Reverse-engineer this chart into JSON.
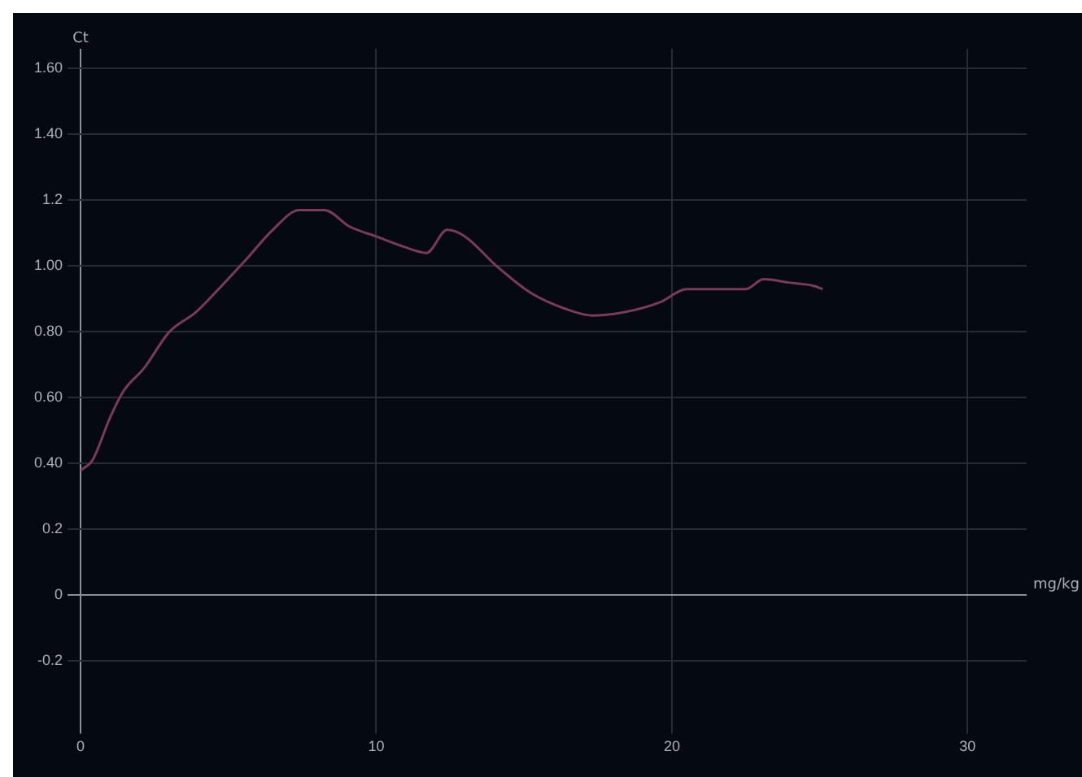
{
  "chart_data": {
    "type": "line",
    "xlabel": "mg/kg",
    "ylabel": "Ct",
    "x": [
      0,
      0.4,
      1.0,
      1.45,
      2.15,
      3.0,
      3.9,
      4.77,
      5.6,
      6.5,
      7.4,
      8.25,
      9.1,
      10,
      10.9,
      11.7,
      12.4,
      13.0,
      14.07,
      15.2,
      16.4,
      17.3,
      18.4,
      19.6,
      20.5,
      21.6,
      22.5,
      23.1,
      23.95,
      24.8,
      25.1
    ],
    "series": [
      {
        "color": "#7a3a58",
        "values": [
          0.38,
          0.41,
          0.54,
          0.62,
          0.69,
          0.8,
          0.86,
          0.94,
          1.02,
          1.11,
          1.17,
          1.17,
          1.12,
          1.09,
          1.06,
          1.04,
          1.11,
          1.09,
          1.0,
          0.92,
          0.87,
          0.85,
          0.86,
          0.89,
          0.93,
          0.93,
          0.93,
          0.96,
          0.95,
          0.94,
          0.93
        ]
      }
    ],
    "xlim": [
      0,
      32
    ],
    "xticks": [
      0,
      10,
      20,
      30
    ],
    "ylim": [
      -0.38,
      1.66
    ],
    "yticks": [
      {
        "value": -0.2,
        "label": "-0.2"
      },
      0,
      {
        "value": 0.2,
        "label": "0.2"
      },
      {
        "value": 0.4,
        "label": "0.40"
      },
      {
        "value": 0.6,
        "label": "0.60"
      },
      {
        "value": 0.8,
        "label": "0.80"
      },
      {
        "value": 1.0,
        "label": "1.00"
      },
      {
        "value": 1.2,
        "label": "1.2"
      },
      {
        "value": 1.4,
        "label": "1.40"
      },
      {
        "value": 1.6,
        "label": "1.60"
      }
    ],
    "grid": true,
    "legend": false,
    "marker": "none",
    "line_style": "solid"
  }
}
